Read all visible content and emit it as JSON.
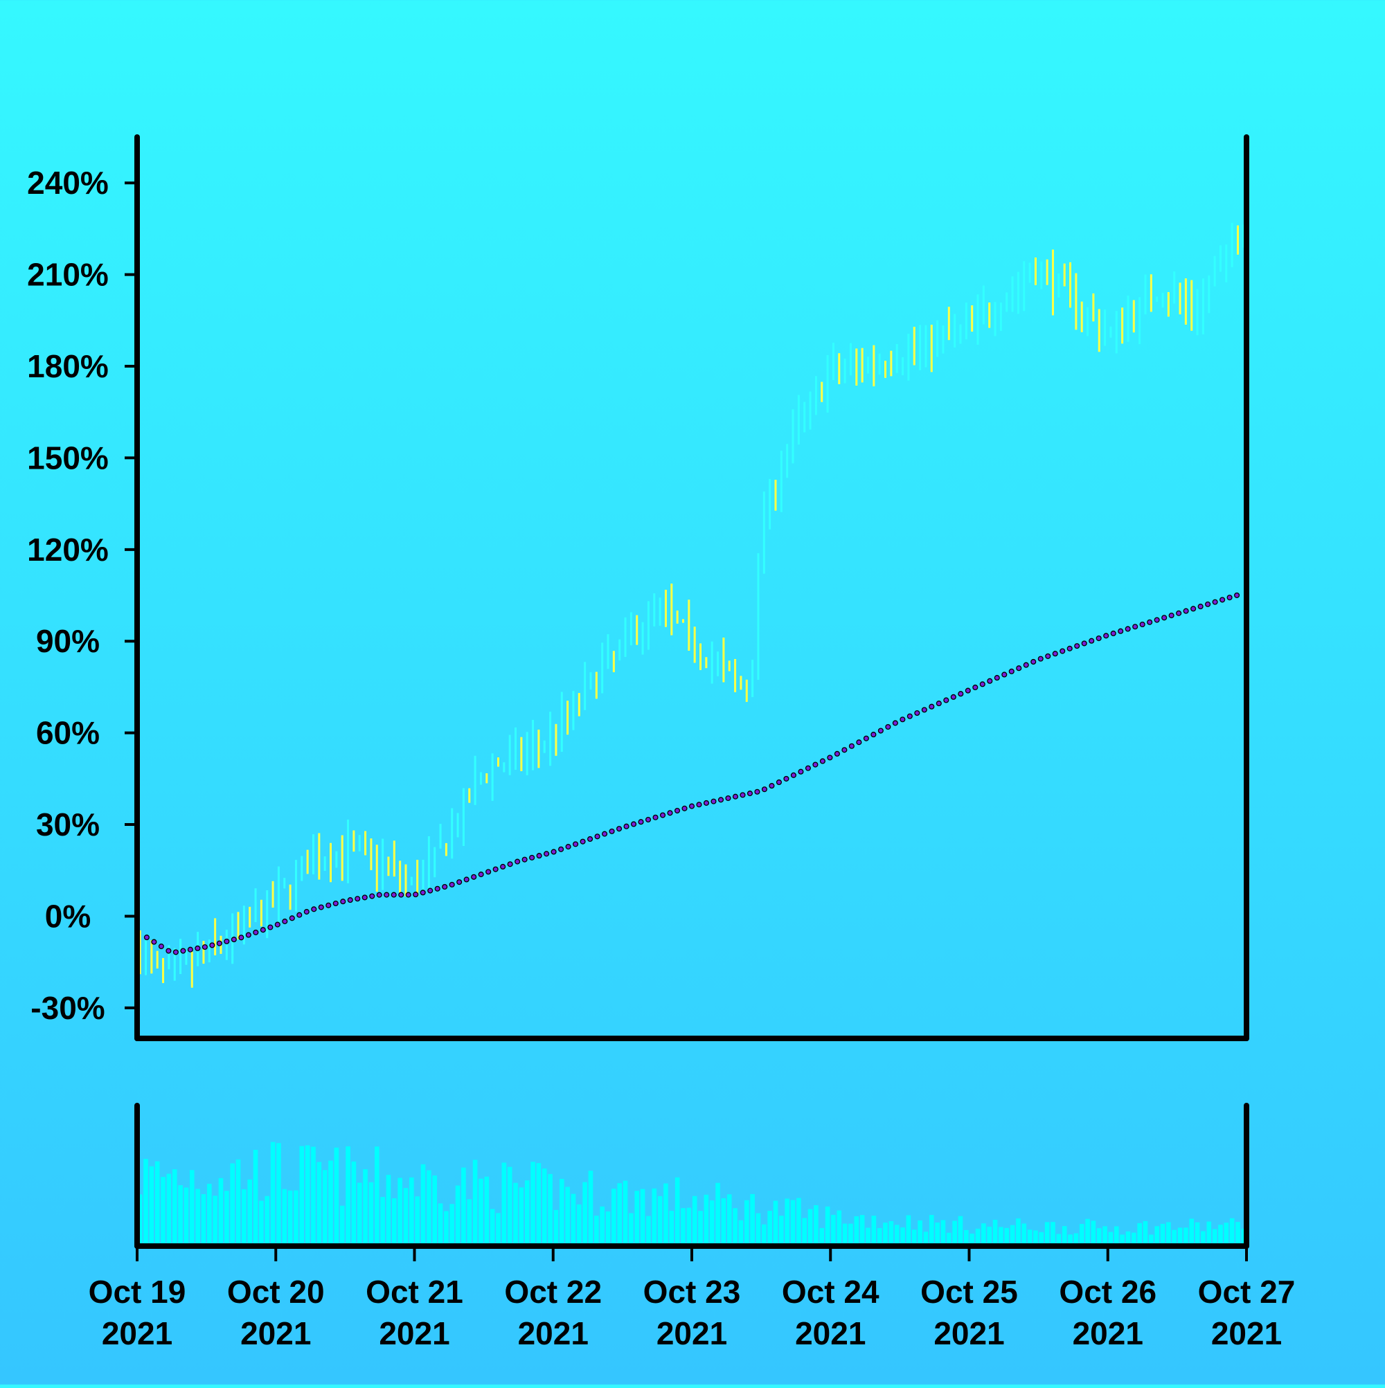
{
  "chart_data": {
    "type": "ohlc",
    "title": "",
    "xlabel": "",
    "ylabel": "",
    "y_unit": "%",
    "ylim": [
      -40,
      255
    ],
    "yticks": [
      -30,
      0,
      30,
      60,
      90,
      120,
      150,
      180,
      210,
      240
    ],
    "ytick_labels": [
      "-30%",
      "0%",
      "30%",
      "60%",
      "90%",
      "120%",
      "150%",
      "180%",
      "210%",
      "240%"
    ],
    "x_range": [
      "2021-10-19",
      "2021-10-27"
    ],
    "xtick_labels": [
      {
        "date": "2021-10-19",
        "line1": "Oct 19",
        "line2": "2021"
      },
      {
        "date": "2021-10-20",
        "line1": "Oct 20",
        "line2": "2021"
      },
      {
        "date": "2021-10-21",
        "line1": "Oct 21",
        "line2": "2021"
      },
      {
        "date": "2021-10-22",
        "line1": "Oct 22",
        "line2": "2021"
      },
      {
        "date": "2021-10-23",
        "line1": "Oct 23",
        "line2": "2021"
      },
      {
        "date": "2021-10-24",
        "line1": "Oct 24",
        "line2": "2021"
      },
      {
        "date": "2021-10-25",
        "line1": "Oct 25",
        "line2": "2021"
      },
      {
        "date": "2021-10-26",
        "line1": "Oct 26",
        "line2": "2021"
      },
      {
        "date": "2021-10-27",
        "line1": "Oct 27",
        "line2": "2021"
      }
    ],
    "price_anchors": [
      {
        "date": "2021-10-19 00:00",
        "value": -12
      },
      {
        "date": "2021-10-19 06:00",
        "value": -20
      },
      {
        "date": "2021-10-19 12:00",
        "value": -12
      },
      {
        "date": "2021-10-19 18:00",
        "value": -4
      },
      {
        "date": "2021-10-20 00:00",
        "value": 5
      },
      {
        "date": "2021-10-20 06:00",
        "value": 18
      },
      {
        "date": "2021-10-20 12:00",
        "value": 22
      },
      {
        "date": "2021-10-20 18:00",
        "value": 18
      },
      {
        "date": "2021-10-21 00:00",
        "value": 10
      },
      {
        "date": "2021-10-21 06:00",
        "value": 25
      },
      {
        "date": "2021-10-21 12:00",
        "value": 48
      },
      {
        "date": "2021-10-21 18:00",
        "value": 52
      },
      {
        "date": "2021-10-22 00:00",
        "value": 60
      },
      {
        "date": "2021-10-22 09:00",
        "value": 82
      },
      {
        "date": "2021-10-22 18:00",
        "value": 102
      },
      {
        "date": "2021-10-23 00:00",
        "value": 90
      },
      {
        "date": "2021-10-23 10:00",
        "value": 72
      },
      {
        "date": "2021-10-23 12:00",
        "value": 130
      },
      {
        "date": "2021-10-23 18:00",
        "value": 160
      },
      {
        "date": "2021-10-24 00:00",
        "value": 178
      },
      {
        "date": "2021-10-24 12:00",
        "value": 184
      },
      {
        "date": "2021-10-25 00:00",
        "value": 193
      },
      {
        "date": "2021-10-25 12:00",
        "value": 212
      },
      {
        "date": "2021-10-25 18:00",
        "value": 202
      },
      {
        "date": "2021-10-26 00:00",
        "value": 190
      },
      {
        "date": "2021-10-26 09:00",
        "value": 206
      },
      {
        "date": "2021-10-26 15:00",
        "value": 198
      },
      {
        "date": "2021-10-27 00:00",
        "value": 228
      }
    ],
    "moving_average": [
      {
        "date": "2021-10-19 00:00",
        "value": -5
      },
      {
        "date": "2021-10-19 06:00",
        "value": -12
      },
      {
        "date": "2021-10-19 12:00",
        "value": -10
      },
      {
        "date": "2021-10-19 18:00",
        "value": -7
      },
      {
        "date": "2021-10-20 00:00",
        "value": -3
      },
      {
        "date": "2021-10-20 06:00",
        "value": 2
      },
      {
        "date": "2021-10-20 12:00",
        "value": 5
      },
      {
        "date": "2021-10-20 18:00",
        "value": 7
      },
      {
        "date": "2021-10-21 00:00",
        "value": 7
      },
      {
        "date": "2021-10-21 06:00",
        "value": 10
      },
      {
        "date": "2021-10-21 12:00",
        "value": 14
      },
      {
        "date": "2021-10-21 18:00",
        "value": 18
      },
      {
        "date": "2021-10-22 00:00",
        "value": 21
      },
      {
        "date": "2021-10-22 12:00",
        "value": 29
      },
      {
        "date": "2021-10-23 00:00",
        "value": 36
      },
      {
        "date": "2021-10-23 12:00",
        "value": 41
      },
      {
        "date": "2021-10-24 00:00",
        "value": 52
      },
      {
        "date": "2021-10-24 12:00",
        "value": 64
      },
      {
        "date": "2021-10-25 00:00",
        "value": 74
      },
      {
        "date": "2021-10-25 12:00",
        "value": 84
      },
      {
        "date": "2021-10-26 00:00",
        "value": 92
      },
      {
        "date": "2021-10-26 12:00",
        "value": 99
      },
      {
        "date": "2021-10-27 00:00",
        "value": 106
      }
    ],
    "volume_envelope": [
      {
        "date": "2021-10-19",
        "level": 0.75
      },
      {
        "date": "2021-10-20",
        "level": 0.8
      },
      {
        "date": "2021-10-21",
        "level": 0.7
      },
      {
        "date": "2021-10-22",
        "level": 0.6
      },
      {
        "date": "2021-10-23",
        "level": 0.5
      },
      {
        "date": "2021-10-24",
        "level": 0.3
      },
      {
        "date": "2021-10-25",
        "level": 0.2
      },
      {
        "date": "2021-10-26",
        "level": 0.18
      },
      {
        "date": "2021-10-27",
        "level": 0.2
      }
    ],
    "bars_per_day": 24,
    "colors": {
      "background_top": "#35f8ff",
      "background_bottom": "#35c6ff",
      "bar_up": "#33ffff",
      "bar_down": "#ffff44",
      "moving_average": "#7a1fd6",
      "moving_average_outline": "#000000",
      "volume": "#00ffff",
      "axes": "#000000"
    },
    "grid": false
  }
}
